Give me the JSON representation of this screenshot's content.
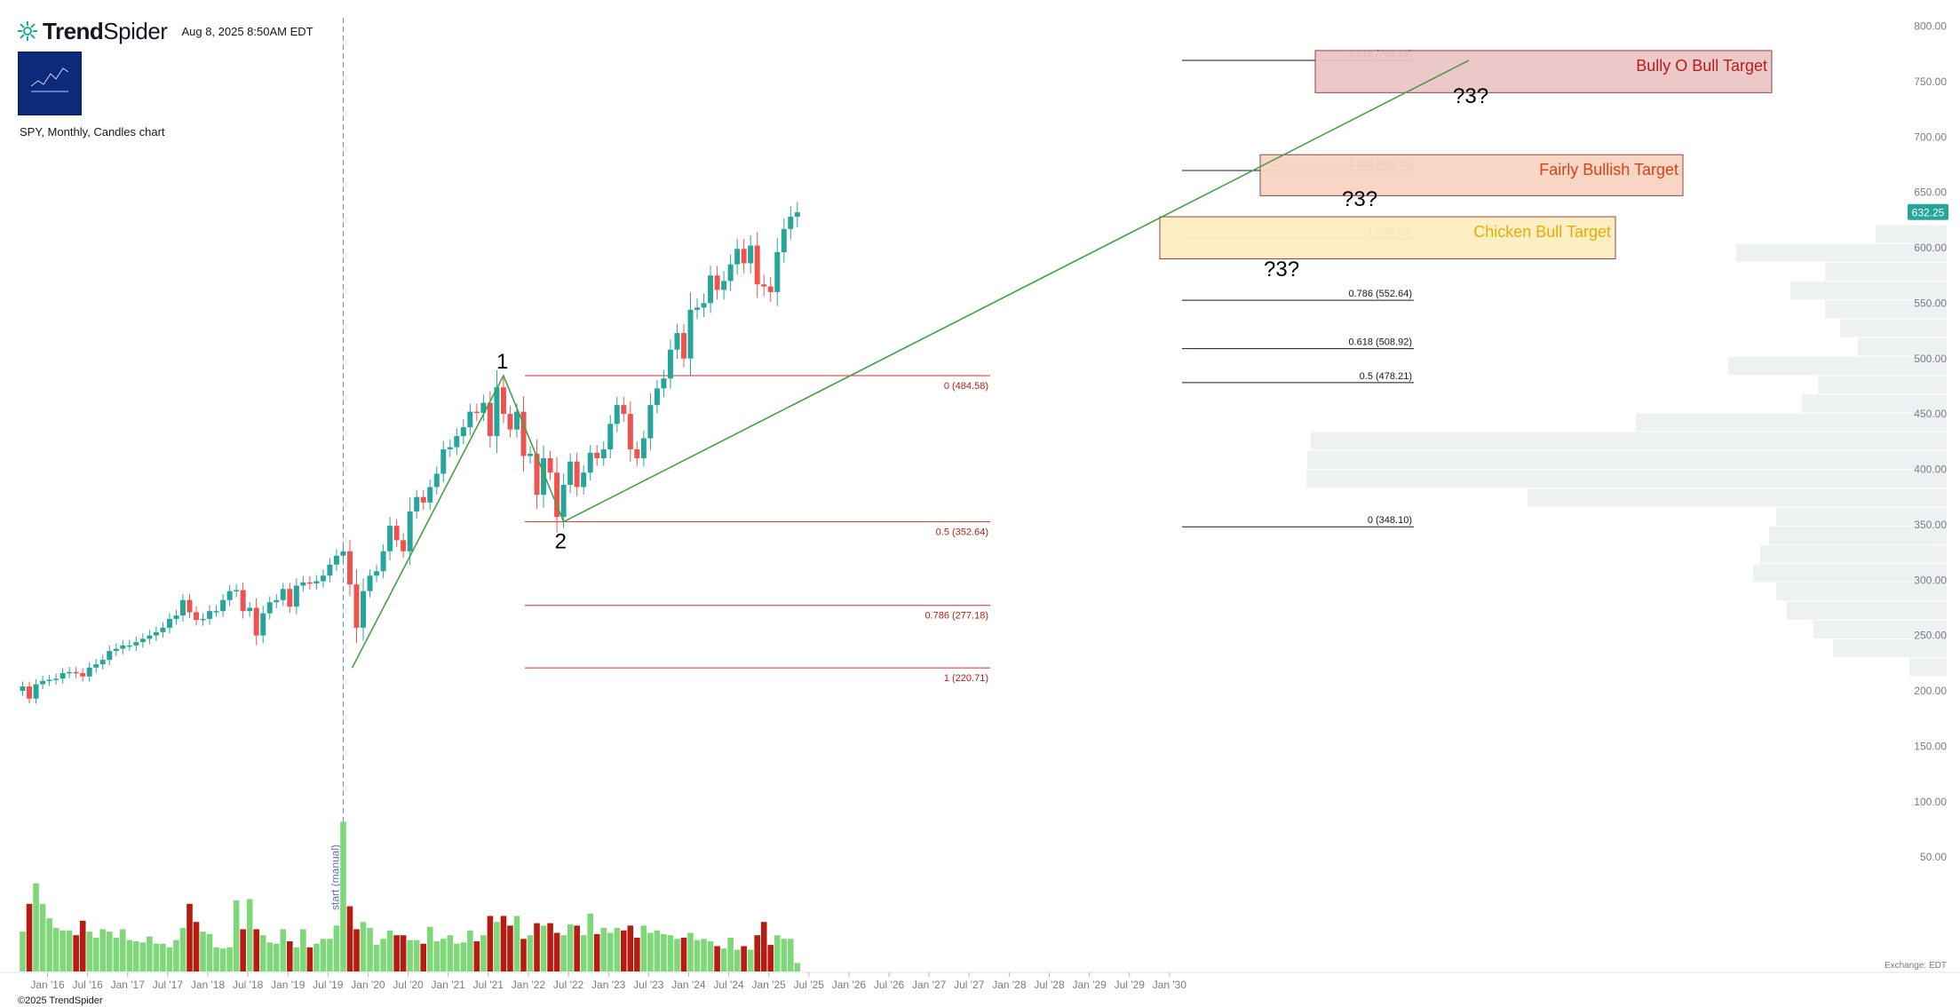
{
  "header": {
    "brand_bold": "Trend",
    "brand_light": "Spider",
    "timestamp": "Aug 8, 2025 8:50AM EDT",
    "symbol": "SPY, Monthly, Candles chart",
    "copyright": "©2025 TrendSpider",
    "exchange": "Exchange: EDT",
    "current_price": "632.25"
  },
  "colors": {
    "up": "#26a69a",
    "down": "#ef5350",
    "vol_up": "#7ed87a",
    "vol_down": "#b71c12",
    "trend": "#43a047",
    "fib_left": "#d32f2f",
    "fib_right": "#131722",
    "price_badge": "#26a69a",
    "vline": "#5b8ad6"
  },
  "chart_data": {
    "type": "candlestick",
    "yticks": [
      "800.00",
      "750.00",
      "700.00",
      "650.00",
      "600.00",
      "550.00",
      "500.00",
      "450.00",
      "400.00",
      "350.00",
      "300.00",
      "250.00",
      "200.00",
      "150.00",
      "100.00",
      "50.00"
    ],
    "xticks": [
      "Jan '16",
      "Jul '16",
      "Jan '17",
      "Jul '17",
      "Jan '18",
      "Jul '18",
      "Jan '19",
      "Jul '19",
      "Jan '20",
      "Jul '20",
      "Jan '21",
      "Jul '21",
      "Jan '22",
      "Jul '22",
      "Jan '23",
      "Jul '23",
      "Jan '24",
      "Jul '24",
      "Jan '25",
      "Jul '25",
      "Jan '26",
      "Jul '26",
      "Jan '27",
      "Jul '27",
      "Jan '28",
      "Jul '28",
      "Jan '29",
      "Jul '29",
      "Jan '30"
    ],
    "ylim": [
      0,
      820
    ],
    "series_close": [
      204,
      193,
      206,
      209,
      210,
      211,
      216,
      217,
      216,
      213,
      221,
      224,
      228,
      236,
      238,
      241,
      241,
      244,
      247,
      250,
      253,
      257,
      265,
      268,
      282,
      271,
      264,
      265,
      272,
      272,
      282,
      290,
      291,
      272,
      275,
      250,
      270,
      280,
      282,
      292,
      276,
      295,
      298,
      297,
      299,
      304,
      314,
      322,
      326,
      296,
      257,
      290,
      304,
      308,
      326,
      349,
      336,
      326,
      362,
      375,
      370,
      384,
      396,
      418,
      420,
      430,
      438,
      452,
      451,
      460,
      430,
      474,
      450,
      436,
      452,
      412,
      414,
      377,
      410,
      397,
      357,
      386,
      407,
      384,
      397,
      415,
      410,
      418,
      441,
      458,
      450,
      418,
      410,
      428,
      458,
      473,
      482,
      508,
      523,
      500,
      544,
      546,
      550,
      575,
      562,
      570,
      585,
      599,
      586,
      602,
      567,
      565,
      560,
      596,
      617,
      628,
      632
    ],
    "volume": [
      33,
      56,
      73,
      56,
      44,
      36,
      34,
      34,
      30,
      42,
      33,
      28,
      35,
      33,
      28,
      35,
      26,
      25,
      24,
      29,
      23,
      23,
      20,
      26,
      36,
      56,
      41,
      33,
      31,
      20,
      19,
      20,
      59,
      35,
      60,
      35,
      30,
      24,
      23,
      35,
      25,
      20,
      35,
      20,
      23,
      27,
      27,
      38,
      124,
      54,
      35,
      41,
      36,
      22,
      27,
      34,
      30,
      30,
      26,
      26,
      23,
      37,
      25,
      27,
      30,
      23,
      24,
      34,
      25,
      30,
      46,
      41,
      46,
      38,
      46,
      27,
      30,
      40,
      38,
      40,
      32,
      30,
      39,
      38,
      30,
      48,
      31,
      36,
      32,
      36,
      34,
      38,
      28,
      38,
      32,
      34,
      31,
      30,
      27,
      28,
      32,
      26,
      27,
      25,
      21,
      19,
      28,
      18,
      21,
      18,
      30,
      41,
      22,
      30,
      27,
      27,
      7
    ],
    "fib_left": [
      {
        "label": "0 (484.58)",
        "value": 484.58
      },
      {
        "label": "0.5 (352.64)",
        "value": 352.64
      },
      {
        "label": "0.786 (277.18)",
        "value": 277.18
      },
      {
        "label": "1 (220.71)",
        "value": 220.71
      }
    ],
    "fib_right": [
      {
        "label": "1.618 (769.16)",
        "value": 769.16
      },
      {
        "label": "1.236 (669.75)",
        "value": 669.75
      },
      {
        "label": "1 (608.33)",
        "value": 608.33
      },
      {
        "label": "0.786 (552.64)",
        "value": 552.64
      },
      {
        "label": "0.618 (508.92)",
        "value": 508.92
      },
      {
        "label": "0.5 (478.21)",
        "value": 478.21
      },
      {
        "label": "0 (348.10)",
        "value": 348.1
      }
    ],
    "targets": [
      {
        "label": "Bully O Bull Target",
        "low": 740,
        "high": 778,
        "fill": "#ebc6c6",
        "stroke": "#8b3a3a",
        "color": "#b71c1c"
      },
      {
        "label": "Fairly Bullish Target",
        "low": 647,
        "high": 684,
        "fill": "#f8d3c1",
        "stroke": "#8b3a3a",
        "color": "#d84315"
      },
      {
        "label": "Chicken Bull Target",
        "low": 590,
        "high": 628,
        "fill": "#fdefc0",
        "stroke": "#8b3a3a",
        "color": "#e6ac00"
      }
    ],
    "wave_labels": [
      "1",
      "2"
    ],
    "question_labels": [
      "?3?",
      "?3?",
      "?3?"
    ],
    "vline_label": "start (manual)",
    "volume_profile": [
      {
        "p": 612,
        "w": 80
      },
      {
        "p": 595,
        "w": 237
      },
      {
        "p": 578,
        "w": 137
      },
      {
        "p": 561,
        "w": 176
      },
      {
        "p": 544,
        "w": 137
      },
      {
        "p": 527,
        "w": 120
      },
      {
        "p": 510,
        "w": 100
      },
      {
        "p": 493,
        "w": 246
      },
      {
        "p": 476,
        "w": 145
      },
      {
        "p": 459,
        "w": 163
      },
      {
        "p": 442,
        "w": 350
      },
      {
        "p": 425,
        "w": 716
      },
      {
        "p": 408,
        "w": 720
      },
      {
        "p": 391,
        "w": 721
      },
      {
        "p": 374,
        "w": 472
      },
      {
        "p": 357,
        "w": 192
      },
      {
        "p": 340,
        "w": 200
      },
      {
        "p": 323,
        "w": 210
      },
      {
        "p": 306,
        "w": 218
      },
      {
        "p": 289,
        "w": 192
      },
      {
        "p": 272,
        "w": 180
      },
      {
        "p": 255,
        "w": 150
      },
      {
        "p": 238,
        "w": 128
      },
      {
        "p": 221,
        "w": 42
      }
    ]
  }
}
